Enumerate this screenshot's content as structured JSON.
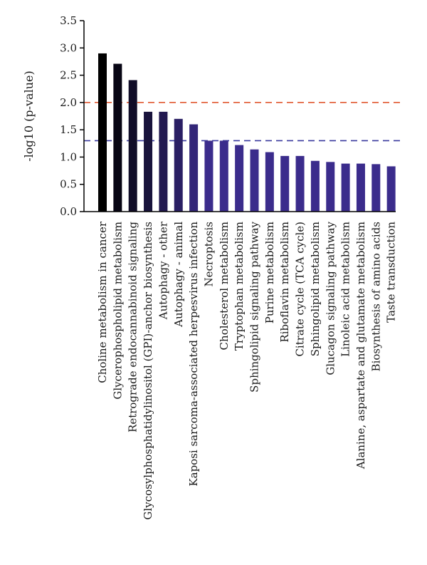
{
  "chart_data": {
    "type": "bar",
    "title": "",
    "xlabel": "",
    "ylabel": "-log10 (p-value)",
    "ylim": [
      0,
      3.5
    ],
    "yticks": [
      "0.0",
      "0.5",
      "1.0",
      "1.5",
      "2.0",
      "2.5",
      "3.0",
      "3.5"
    ],
    "grid": false,
    "legend": "none",
    "categories": [
      "Choline metabolism in cancer",
      "Glycerophospholipid metabolism",
      "Retrograde endocannabinoid signaling",
      "Glycosylphosphatidylinositol (GPI)-anchor biosynthesis",
      "Autophagy - other",
      "Autophagy - animal",
      "Kaposi sarcoma-associated herpesvirus infection",
      "Necroptosis",
      "Cholesterol metabolism",
      "Tryptophan metabolism",
      "Sphingolipid signaling pathway",
      "Purine metabolism",
      "Riboflavin metabolism",
      "Citrate cycle (TCA cycle)",
      "Sphingolipid metabolism",
      "Glucagon signaling pathway",
      "Linoleic acid metabolism",
      "Alanine, aspartate and glutamate metabolism",
      "Biosynthesis of amino acids",
      "Taste transduction"
    ],
    "values": [
      2.9,
      2.71,
      2.41,
      1.83,
      1.83,
      1.7,
      1.6,
      1.3,
      1.3,
      1.22,
      1.14,
      1.09,
      1.02,
      1.02,
      0.93,
      0.91,
      0.88,
      0.88,
      0.87,
      0.83
    ],
    "reference_lines": [
      {
        "y": 2.0,
        "color": "#e0572f",
        "style": "dashed"
      },
      {
        "y": 1.3,
        "color": "#3a3a9e",
        "style": "dashed"
      }
    ],
    "colors": {
      "gradient_start": "#000000",
      "gradient_end": "#3b2c8c",
      "axis": "#000000"
    }
  }
}
